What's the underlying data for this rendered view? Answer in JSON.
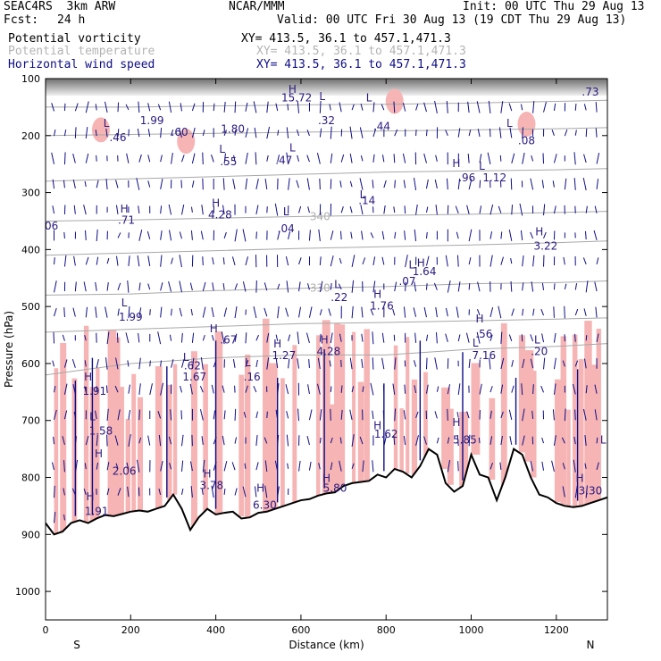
{
  "header": {
    "model": "SEAC4RS  3km ARW",
    "org": "NCAR/MMM",
    "init": "Init: 00 UTC Thu 29 Aug 13",
    "fcst_label": "Fcst:",
    "fcst_value": "24 h",
    "valid": "Valid: 00 UTC Fri 30 Aug 13 (19 CDT Thu 29 Aug 13)"
  },
  "fields": [
    {
      "name": "Potential vorticity",
      "xy": "XY= 413.5, 36.1 to 457.1,471.3",
      "color": "#000000"
    },
    {
      "name": "Potential temperature",
      "xy": "XY= 413.5, 36.1 to 457.1,471.3",
      "color": "#b4b4b4"
    },
    {
      "name": "Horizontal wind speed",
      "xy": "XY= 413.5, 36.1 to 457.1,471.3",
      "color": "#0d0d86"
    }
  ],
  "colors": {
    "pv_shade": "#f6b4b4",
    "pv_contour": "#3a0a4a",
    "theta": "#a8a8a8",
    "wind": "#0d0d86",
    "terrain": "#000000",
    "hl_label": "#2a1a80"
  },
  "chart_data": {
    "type": "cross-section",
    "xlabel": "Distance (km)",
    "ylabel": "Pressure (hPa)",
    "xlim": [
      0,
      1320
    ],
    "ylim": [
      1050,
      100
    ],
    "xticks": [
      0,
      200,
      400,
      600,
      800,
      1000,
      1200
    ],
    "yticks": [
      100,
      200,
      300,
      400,
      500,
      600,
      700,
      800,
      900,
      1000
    ],
    "x_end_labels": {
      "left": "S",
      "right": "N"
    },
    "terrain": {
      "x": [
        0,
        20,
        40,
        60,
        80,
        100,
        120,
        140,
        160,
        180,
        200,
        220,
        240,
        260,
        280,
        300,
        320,
        340,
        360,
        380,
        400,
        420,
        440,
        460,
        480,
        500,
        520,
        540,
        560,
        580,
        600,
        620,
        640,
        660,
        680,
        700,
        720,
        740,
        760,
        780,
        800,
        820,
        840,
        860,
        880,
        900,
        920,
        940,
        960,
        980,
        1000,
        1020,
        1040,
        1060,
        1080,
        1100,
        1120,
        1140,
        1160,
        1180,
        1200,
        1220,
        1240,
        1260,
        1280,
        1300,
        1320
      ],
      "p": [
        880,
        900,
        895,
        880,
        875,
        880,
        872,
        866,
        868,
        864,
        860,
        858,
        860,
        855,
        850,
        830,
        855,
        892,
        870,
        855,
        865,
        862,
        860,
        872,
        870,
        862,
        860,
        855,
        850,
        845,
        840,
        838,
        832,
        828,
        826,
        815,
        810,
        808,
        806,
        795,
        800,
        785,
        790,
        800,
        780,
        750,
        760,
        810,
        825,
        815,
        760,
        795,
        800,
        840,
        800,
        750,
        760,
        800,
        830,
        835,
        845,
        850,
        852,
        850,
        845,
        840,
        835
      ]
    },
    "theta_contours": [
      {
        "label": "340",
        "x": [
          0,
          200,
          400,
          600,
          800,
          1000,
          1200,
          1320
        ],
        "p": [
          350,
          348,
          345,
          342,
          340,
          338,
          335,
          333
        ]
      },
      {
        "label": "330",
        "x": [
          0,
          200,
          400,
          600,
          800,
          1000,
          1200,
          1320
        ],
        "p": [
          480,
          478,
          472,
          468,
          465,
          460,
          458,
          455
        ]
      },
      {
        "label": "",
        "x": [
          0,
          200,
          400,
          600,
          800,
          1000,
          1200,
          1320
        ],
        "p": [
          150,
          150,
          148,
          146,
          145,
          143,
          140,
          138
        ]
      },
      {
        "label": "",
        "x": [
          0,
          200,
          400,
          600,
          800,
          1000,
          1200,
          1320
        ],
        "p": [
          200,
          198,
          196,
          194,
          192,
          190,
          188,
          186
        ]
      },
      {
        "label": "",
        "x": [
          0,
          200,
          400,
          600,
          800,
          1000,
          1200,
          1320
        ],
        "p": [
          280,
          276,
          272,
          268,
          264,
          262,
          260,
          258
        ]
      },
      {
        "label": "",
        "x": [
          0,
          200,
          400,
          600,
          800,
          1000,
          1200,
          1320
        ],
        "p": [
          410,
          406,
          402,
          398,
          395,
          392,
          388,
          385
        ]
      },
      {
        "label": "",
        "x": [
          0,
          200,
          400,
          600,
          800,
          1000,
          1200,
          1320
        ],
        "p": [
          545,
          540,
          535,
          530,
          528,
          525,
          522,
          520
        ]
      },
      {
        "label": "",
        "x": [
          0,
          200,
          400,
          600,
          800,
          1000,
          1200,
          1320
        ],
        "p": [
          620,
          600,
          590,
          585,
          585,
          575,
          570,
          565
        ]
      }
    ],
    "hl_labels": [
      {
        "t": "L",
        "x": 143,
        "p": 185
      },
      {
        "t": ".46",
        "x": 170,
        "p": 210
      },
      {
        "t": "1.99",
        "x": 250,
        "p": 180
      },
      {
        "t": ".60",
        "x": 315,
        "p": 200
      },
      {
        "t": "1.80",
        "x": 440,
        "p": 195
      },
      {
        "t": "L",
        "x": 415,
        "p": 230
      },
      {
        "t": ".55",
        "x": 430,
        "p": 252
      },
      {
        "t": "H",
        "x": 580,
        "p": 125
      },
      {
        "t": "15.72",
        "x": 590,
        "p": 140
      },
      {
        "t": "L",
        "x": 650,
        "p": 138
      },
      {
        "t": ".32",
        "x": 660,
        "p": 180
      },
      {
        "t": "L",
        "x": 580,
        "p": 228
      },
      {
        "t": ".47",
        "x": 560,
        "p": 250
      },
      {
        "t": "L",
        "x": 760,
        "p": 140
      },
      {
        "t": ".44",
        "x": 790,
        "p": 190
      },
      {
        "t": "L",
        "x": 1090,
        "p": 185
      },
      {
        "t": ".08",
        "x": 1130,
        "p": 215
      },
      {
        "t": ".73",
        "x": 1280,
        "p": 130
      },
      {
        "t": "H",
        "x": 965,
        "p": 255
      },
      {
        "t": ".96",
        "x": 990,
        "p": 280
      },
      {
        "t": "L",
        "x": 1025,
        "p": 260
      },
      {
        "t": "1.12",
        "x": 1055,
        "p": 280
      },
      {
        "t": "L",
        "x": 745,
        "p": 310
      },
      {
        "t": ".14",
        "x": 755,
        "p": 320
      },
      {
        "t": "H",
        "x": 185,
        "p": 335
      },
      {
        "t": ".71",
        "x": 190,
        "p": 355
      },
      {
        "t": "H",
        "x": 400,
        "p": 325
      },
      {
        "t": "4.28",
        "x": 410,
        "p": 345
      },
      {
        "t": "L",
        "x": 565,
        "p": 340
      },
      {
        "t": ".04",
        "x": 565,
        "p": 370
      },
      {
        "t": ".06",
        "x": 10,
        "p": 365
      },
      {
        "t": "H",
        "x": 1160,
        "p": 375
      },
      {
        "t": "3.22",
        "x": 1175,
        "p": 400
      },
      {
        "t": "L",
        "x": 860,
        "p": 433
      },
      {
        "t": "H",
        "x": 882,
        "p": 430
      },
      {
        "t": "1.64",
        "x": 890,
        "p": 445
      },
      {
        "t": ".07",
        "x": 850,
        "p": 462
      },
      {
        "t": "L",
        "x": 685,
        "p": 468
      },
      {
        "t": ".22",
        "x": 690,
        "p": 490
      },
      {
        "t": "H",
        "x": 780,
        "p": 485
      },
      {
        "t": "1.76",
        "x": 790,
        "p": 505
      },
      {
        "t": "L",
        "x": 185,
        "p": 500
      },
      {
        "t": "1.99",
        "x": 200,
        "p": 525
      },
      {
        "t": "H",
        "x": 1020,
        "p": 528
      },
      {
        "t": ".56",
        "x": 1030,
        "p": 555
      },
      {
        "t": "H",
        "x": 395,
        "p": 545
      },
      {
        "t": ".67",
        "x": 430,
        "p": 565
      },
      {
        "t": "L",
        "x": 1155,
        "p": 565
      },
      {
        "t": ".20",
        "x": 1160,
        "p": 585
      },
      {
        "t": "H",
        "x": 545,
        "p": 572
      },
      {
        "t": "1.27",
        "x": 560,
        "p": 592
      },
      {
        "t": "H",
        "x": 655,
        "p": 565
      },
      {
        "t": "4.28",
        "x": 665,
        "p": 585
      },
      {
        "t": "L",
        "x": 1010,
        "p": 570
      },
      {
        "t": "7.16",
        "x": 1030,
        "p": 592
      },
      {
        "t": "L",
        "x": 330,
        "p": 595
      },
      {
        "t": ".62",
        "x": 345,
        "p": 610
      },
      {
        "t": "1.67",
        "x": 350,
        "p": 630
      },
      {
        "t": "L",
        "x": 475,
        "p": 605
      },
      {
        "t": ".16",
        "x": 485,
        "p": 630
      },
      {
        "t": "H",
        "x": 100,
        "p": 630
      },
      {
        "t": "1.91",
        "x": 115,
        "p": 655
      },
      {
        "t": "L",
        "x": 110,
        "p": 700
      },
      {
        "t": "1.58",
        "x": 130,
        "p": 725
      },
      {
        "t": "H",
        "x": 125,
        "p": 765
      },
      {
        "t": "2.06",
        "x": 185,
        "p": 795
      },
      {
        "t": "H",
        "x": 780,
        "p": 715
      },
      {
        "t": "1.62",
        "x": 800,
        "p": 730
      },
      {
        "t": "H",
        "x": 965,
        "p": 710
      },
      {
        "t": "5.85",
        "x": 985,
        "p": 740
      },
      {
        "t": "L",
        "x": 1310,
        "p": 740
      },
      {
        "t": "H",
        "x": 380,
        "p": 800
      },
      {
        "t": "3.78",
        "x": 390,
        "p": 820
      },
      {
        "t": "H",
        "x": 660,
        "p": 808
      },
      {
        "t": "5.80",
        "x": 680,
        "p": 825
      },
      {
        "t": "H",
        "x": 505,
        "p": 825
      },
      {
        "t": "6.30",
        "x": 515,
        "p": 855
      },
      {
        "t": "H",
        "x": 1255,
        "p": 808
      },
      {
        "t": "3.30",
        "x": 1280,
        "p": 830
      },
      {
        "t": "H",
        "x": 105,
        "p": 840
      },
      {
        "t": "1.91",
        "x": 120,
        "p": 866
      }
    ]
  }
}
